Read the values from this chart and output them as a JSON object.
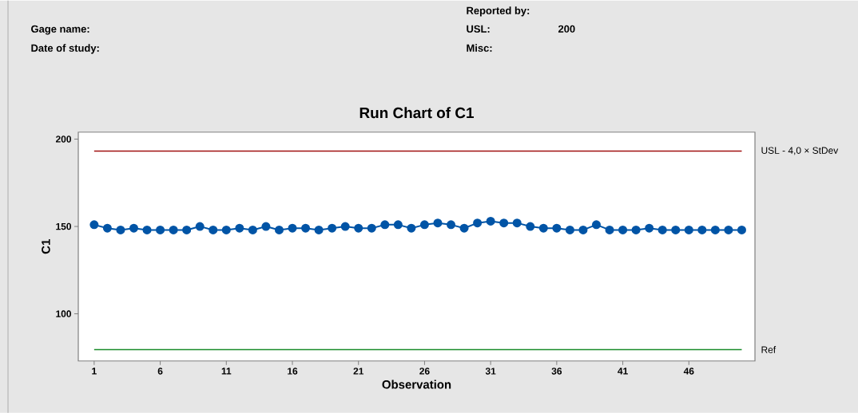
{
  "chart_data": {
    "type": "line",
    "title": "Run Chart of C1",
    "xlabel": "Observation",
    "ylabel": "C1",
    "x": [
      1,
      2,
      3,
      4,
      5,
      6,
      7,
      8,
      9,
      10,
      11,
      12,
      13,
      14,
      15,
      16,
      17,
      18,
      19,
      20,
      21,
      22,
      23,
      24,
      25,
      26,
      27,
      28,
      29,
      30,
      31,
      32,
      33,
      34,
      35,
      36,
      37,
      38,
      39,
      40,
      41,
      42,
      43,
      44,
      45,
      46,
      47,
      48,
      49,
      50
    ],
    "series": [
      {
        "color": "#0054a6",
        "values": [
          151,
          149,
          148,
          149,
          148,
          148,
          148,
          148,
          150,
          148,
          148,
          149,
          148,
          150,
          148,
          149,
          149,
          148,
          149,
          150,
          149,
          149,
          151,
          151,
          149,
          151,
          152,
          151,
          149,
          152,
          153,
          152,
          152,
          150,
          149,
          149,
          148,
          148,
          151,
          148,
          148,
          148,
          149,
          148,
          148,
          148,
          148,
          148,
          148,
          148
        ]
      }
    ],
    "xlim": [
      -0.2,
      51
    ],
    "ylim": [
      73,
      204
    ],
    "xticks": [
      1,
      6,
      11,
      16,
      21,
      26,
      31,
      36,
      41,
      46
    ],
    "yticks": [
      100,
      150,
      200
    ],
    "ref_lines": [
      {
        "axis": "y",
        "value": 193.2,
        "label": "USL - 4,0 × StDev",
        "color": "#a01010"
      },
      {
        "axis": "y",
        "value": 79.5,
        "label": "Ref",
        "color": "#1a8c2a"
      }
    ],
    "annotations": [
      "Gage name:",
      "Date of study:",
      "Reported by:",
      "USL:",
      "200",
      "Misc:"
    ],
    "marker": "circle",
    "line_style": "solid"
  }
}
